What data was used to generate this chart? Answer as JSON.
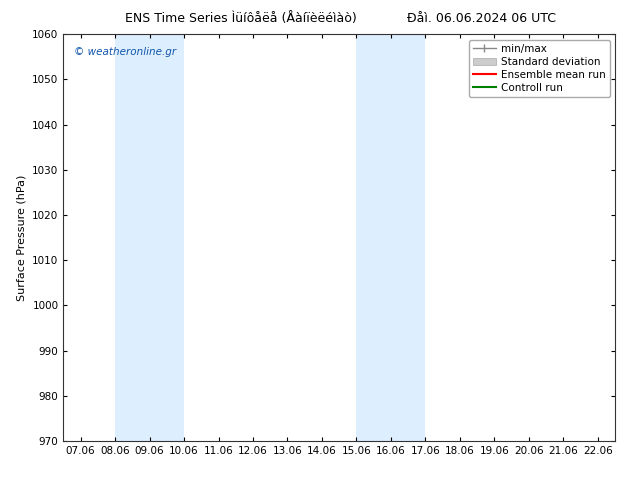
{
  "title": "ENS Time Series Ìüíôåëå (Åàíïèëéìàò)     Ðåì. 06.06.2024 06 UTC",
  "title_left": "ENS Time Series Ìüíôåëå (Åàíïèëéìàò)",
  "title_right": "Ðåì. 06.06.2024 06 UTC",
  "ylabel": "Surface Pressure (hPa)",
  "ylim": [
    970,
    1060
  ],
  "yticks": [
    970,
    980,
    990,
    1000,
    1010,
    1020,
    1030,
    1040,
    1050,
    1060
  ],
  "xtick_labels": [
    "07.06",
    "08.06",
    "09.06",
    "10.06",
    "11.06",
    "12.06",
    "13.06",
    "14.06",
    "15.06",
    "16.06",
    "17.06",
    "18.06",
    "19.06",
    "20.06",
    "21.06",
    "22.06"
  ],
  "xlim": [
    -0.5,
    15.5
  ],
  "shaded_bands": [
    {
      "x_start": 1,
      "x_end": 3,
      "color": "#ddeeff"
    },
    {
      "x_start": 8,
      "x_end": 10,
      "color": "#ddeeff"
    }
  ],
  "watermark_text": "© weatheronline.gr",
  "watermark_color": "#1155aa",
  "bg_color": "#ffffff",
  "plot_bg_color": "#ffffff",
  "title_fontsize": 9,
  "label_fontsize": 8,
  "tick_fontsize": 7.5,
  "legend_fontsize": 7.5
}
